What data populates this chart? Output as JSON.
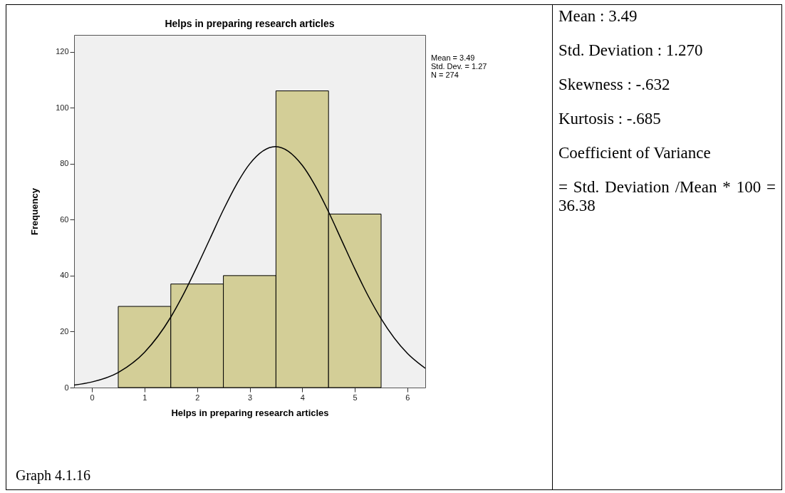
{
  "chart_data": {
    "type": "histogram",
    "title": "Helps in preparing research articles",
    "xlabel": "Helps in preparing research articles",
    "ylabel": "Frequency",
    "series": [
      {
        "bins": [
          0.5,
          1.5,
          2.5,
          3.5,
          4.5,
          5.5
        ],
        "values": [
          29,
          37,
          40,
          106,
          62
        ],
        "color": "#d3ce97"
      },
      {
        "type": "line",
        "color": "#000000",
        "x": [
          -0.34,
          0,
          0.5,
          1,
          1.5,
          1.75,
          2,
          2.25,
          2.5,
          2.75,
          3,
          3.49,
          4,
          4.25,
          4.5,
          4.75,
          5,
          5.25,
          5.5,
          6,
          6.34
        ],
        "values": [
          0.9,
          2,
          5.4,
          12.6,
          25.2,
          33.7,
          43.3,
          53.4,
          63.5,
          72.6,
          79.9,
          86.1,
          79.4,
          72,
          62.8,
          52.6,
          42.4,
          32.9,
          24.6,
          12.2,
          6.9
        ]
      }
    ],
    "xlim": [
      -0.34,
      6.34
    ],
    "xticks": [
      0,
      1,
      2,
      3,
      4,
      5,
      6
    ],
    "ylim": [
      0,
      126
    ],
    "yticks": [
      0,
      20,
      40,
      60,
      80,
      100,
      120
    ],
    "grid": false,
    "annotations": [
      "Mean = 3.49",
      "Std. Dev. = 1.27",
      "N = 274",
      "Graph 4.1.16",
      "Mean : 3.49",
      "Std. Deviation : 1.270",
      "Skewness : -.632",
      "Kurtosis : -.685",
      "Coefficient of Variance",
      "= Std. Deviation /Mean * 100 = 36.38"
    ]
  }
}
